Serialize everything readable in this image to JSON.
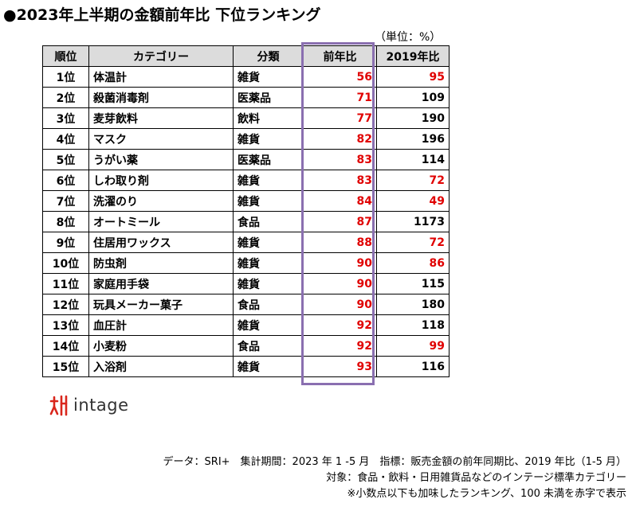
{
  "title": "●2023年上半期の金額前年比 下位ランキング",
  "unit": "（単位：%）",
  "table": {
    "headers": [
      "順位",
      "カテゴリー",
      "分類",
      "前年比",
      "2019年比"
    ],
    "rows": [
      {
        "rank": "1位",
        "category": "体温計",
        "class": "雑貨",
        "yoy": "56",
        "vs2019": "95",
        "vs2019_red": true
      },
      {
        "rank": "2位",
        "category": "殺菌消毒剤",
        "class": "医薬品",
        "yoy": "71",
        "vs2019": "109",
        "vs2019_red": false
      },
      {
        "rank": "3位",
        "category": "麦芽飲料",
        "class": "飲料",
        "yoy": "77",
        "vs2019": "190",
        "vs2019_red": false
      },
      {
        "rank": "4位",
        "category": "マスク",
        "class": "雑貨",
        "yoy": "82",
        "vs2019": "196",
        "vs2019_red": false
      },
      {
        "rank": "5位",
        "category": "うがい薬",
        "class": "医薬品",
        "yoy": "83",
        "vs2019": "114",
        "vs2019_red": false
      },
      {
        "rank": "6位",
        "category": "しわ取り剤",
        "class": "雑貨",
        "yoy": "83",
        "vs2019": "72",
        "vs2019_red": true
      },
      {
        "rank": "7位",
        "category": "洗濯のり",
        "class": "雑貨",
        "yoy": "84",
        "vs2019": "49",
        "vs2019_red": true
      },
      {
        "rank": "8位",
        "category": "オートミール",
        "class": "食品",
        "yoy": "87",
        "vs2019": "1173",
        "vs2019_red": false
      },
      {
        "rank": "9位",
        "category": "住居用ワックス",
        "class": "雑貨",
        "yoy": "88",
        "vs2019": "72",
        "vs2019_red": true
      },
      {
        "rank": "10位",
        "category": "防虫剤",
        "class": "雑貨",
        "yoy": "90",
        "vs2019": "86",
        "vs2019_red": true
      },
      {
        "rank": "11位",
        "category": "家庭用手袋",
        "class": "雑貨",
        "yoy": "90",
        "vs2019": "115",
        "vs2019_red": false
      },
      {
        "rank": "12位",
        "category": "玩具メーカー菓子",
        "class": "食品",
        "yoy": "90",
        "vs2019": "180",
        "vs2019_red": false
      },
      {
        "rank": "13位",
        "category": "血圧計",
        "class": "雑貨",
        "yoy": "92",
        "vs2019": "118",
        "vs2019_red": false
      },
      {
        "rank": "14位",
        "category": "小麦粉",
        "class": "食品",
        "yoy": "92",
        "vs2019": "99",
        "vs2019_red": true
      },
      {
        "rank": "15位",
        "category": "入浴剤",
        "class": "雑貨",
        "yoy": "93",
        "vs2019": "116",
        "vs2019_red": false
      }
    ]
  },
  "logo": {
    "text": "intage",
    "icon": "intage-logo-mark",
    "color": "#d9261c"
  },
  "notes": [
    "データ：SRI+　集計期間：2023 年 1 -5 月　指標：販売金額の前年同期比、2019 年比（1-5 月）",
    "対象：食品・飲料・日用雑貨品などのインテージ標準カテゴリー",
    "※小数点以下も加味したランキング、100 未満を赤字で表示"
  ],
  "colors": {
    "red": "#e00000",
    "highlight": "#8a6fb0",
    "header_bg": "#dcdcdc"
  }
}
